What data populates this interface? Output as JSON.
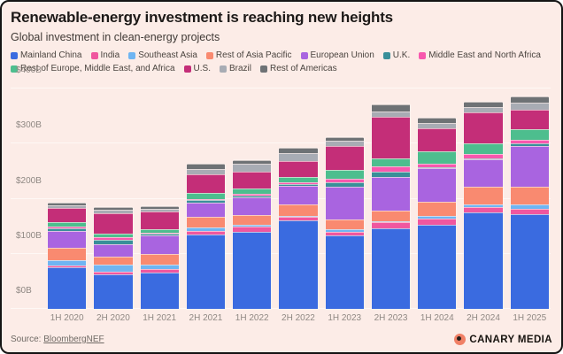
{
  "header": {
    "title": "Renewable-energy investment is reaching new heights",
    "subtitle": "Global investment in clean-energy projects"
  },
  "chart_data": {
    "type": "bar",
    "stacked": true,
    "unit": "billion USD",
    "ylim": [
      0,
      400
    ],
    "y_ticks": [
      {
        "value": 0,
        "label": "$0B"
      },
      {
        "value": 100,
        "label": "$100B"
      },
      {
        "value": 200,
        "label": "$200B"
      },
      {
        "value": 300,
        "label": "$300B"
      },
      {
        "value": 400,
        "label": "$400B"
      }
    ],
    "grid": "horizontal",
    "legend_position": "top",
    "categories": [
      "1H 2020",
      "2H 2020",
      "1H 2021",
      "2H 2021",
      "1H 2022",
      "2H 2022",
      "1H 2023",
      "2H 2023",
      "1H 2024",
      "2H 2024",
      "1H 2025"
    ],
    "series": [
      {
        "name": "Mainland China",
        "color": "#3A6BE0",
        "values": [
          75,
          62,
          66,
          135,
          140,
          160,
          133,
          147,
          152,
          175,
          172
        ]
      },
      {
        "name": "India",
        "color": "#F0579F",
        "values": [
          4,
          5,
          6,
          7,
          9,
          7,
          7,
          10,
          12,
          9,
          10
        ]
      },
      {
        "name": "Southeast Asia",
        "color": "#6FB5F2",
        "values": [
          9,
          13,
          8,
          6,
          3,
          2,
          4,
          2,
          4,
          6,
          7
        ]
      },
      {
        "name": "Rest of Asia Pacific",
        "color": "#F98A70",
        "values": [
          23,
          15,
          20,
          19,
          18,
          20,
          19,
          19,
          27,
          32,
          32
        ]
      },
      {
        "name": "European Union",
        "color": "#A964E0",
        "values": [
          31,
          22,
          33,
          26,
          33,
          35,
          59,
          61,
          60,
          49,
          75
        ]
      },
      {
        "name": "U.K.",
        "color": "#398F99",
        "values": [
          5,
          9,
          4,
          5,
          2,
          2,
          8,
          10,
          2,
          2,
          5
        ]
      },
      {
        "name": "Middle East and North Africa",
        "color": "#F858AE",
        "values": [
          2,
          5,
          2,
          2,
          4,
          4,
          7,
          9,
          7,
          9,
          6
        ]
      },
      {
        "name": "Rest of Europe, Middle East, and Africa",
        "color": "#4DBE8E",
        "values": [
          8,
          6,
          6,
          10,
          10,
          10,
          15,
          15,
          22,
          18,
          19
        ]
      },
      {
        "name": "U.S.",
        "color": "#C42E78",
        "values": [
          26,
          36,
          32,
          34,
          30,
          29,
          43,
          75,
          42,
          57,
          36
        ]
      },
      {
        "name": "Brazil",
        "color": "#A8ACB4",
        "values": [
          5,
          7,
          5,
          10,
          15,
          14,
          10,
          11,
          10,
          10,
          13
        ]
      },
      {
        "name": "Rest of Americas",
        "color": "#6E7275",
        "values": [
          5,
          5,
          5,
          9,
          6,
          10,
          7,
          13,
          9,
          9,
          10
        ]
      }
    ],
    "totals": [
      193,
      185,
      187,
      263,
      270,
      293,
      312,
      372,
      347,
      376,
      385
    ]
  },
  "footer": {
    "source_prefix": "Source:",
    "source_link": "BloombergNEF",
    "brand_name": "CANARY MEDIA"
  }
}
